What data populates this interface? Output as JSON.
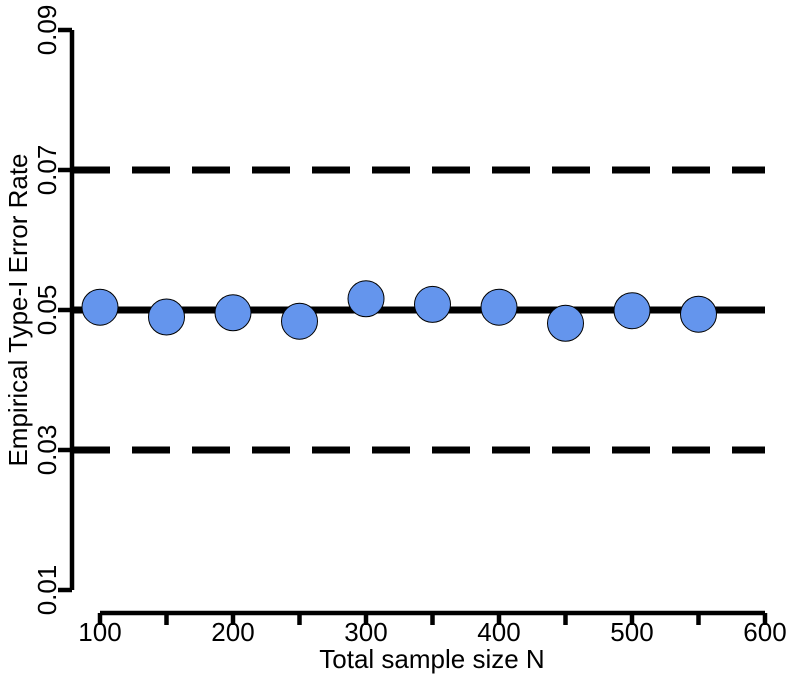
{
  "chart_data": {
    "type": "scatter",
    "title": "",
    "xlabel": "Total sample size N",
    "ylabel": "Empirical Type-I Error Rate",
    "xlim": [
      100,
      600
    ],
    "ylim": [
      0.01,
      0.09
    ],
    "x_ticks": [
      100,
      200,
      300,
      400,
      500,
      600
    ],
    "x_tick_labels": [
      "100",
      "200",
      "300",
      "400",
      "500",
      "600"
    ],
    "x_minor_ticks": [
      150,
      250,
      350,
      450,
      550
    ],
    "y_ticks": [
      0.01,
      0.03,
      0.05,
      0.07,
      0.09
    ],
    "y_tick_labels": [
      "0.01",
      "0.03",
      "0.05",
      "0.07",
      "0.09"
    ],
    "grid": false,
    "point_color": "#6495ED",
    "reference_lines": [
      {
        "y": 0.07,
        "style": "dashed",
        "color": "#000000"
      },
      {
        "y": 0.05,
        "style": "solid",
        "color": "#000000"
      },
      {
        "y": 0.03,
        "style": "dashed",
        "color": "#000000"
      }
    ],
    "series": [
      {
        "x": [
          100,
          150,
          200,
          250,
          300,
          350,
          400,
          450,
          500,
          550
        ],
        "y": [
          0.0504,
          0.049,
          0.0496,
          0.0484,
          0.0516,
          0.0508,
          0.0504,
          0.0481,
          0.0499,
          0.0494
        ]
      }
    ]
  }
}
